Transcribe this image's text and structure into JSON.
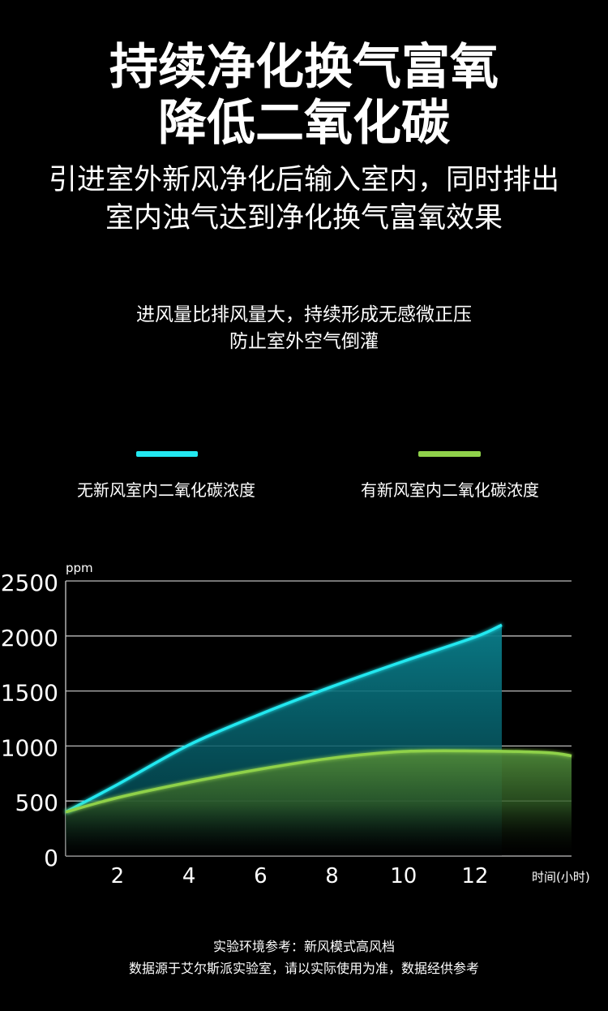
{
  "header": {
    "title_lines": [
      "持续净化换气富氧",
      "降低二氧化碳"
    ],
    "subtitle_lines": [
      "引进室外新风净化后输入室内，同时排出",
      "室内浊气达到净化换气富氧效果"
    ],
    "note_lines": [
      "进风量比排风量大，持续形成无感微正压",
      "防止室外空气倒灌"
    ]
  },
  "footer": {
    "lines": [
      "实验环境参考：新风模式高风档",
      "数据源于艾尔斯派实验室，请以实际使用为准，数据经供参考"
    ]
  },
  "chart_data": {
    "type": "area",
    "title": "",
    "xlabel": "时间(小时)",
    "ylabel": "ppm",
    "xlim": [
      0.55,
      14.7
    ],
    "ylim": [
      0,
      2500
    ],
    "xticks": [
      "2",
      "4",
      "6",
      "8",
      "10",
      "12"
    ],
    "yticks": [
      "0",
      "500",
      "1000",
      "1500",
      "2000",
      "2500"
    ],
    "grid": true,
    "legend_position": "top",
    "series": [
      {
        "name": "无新风室内二氧化碳浓度",
        "color": "#22e8f0",
        "x": [
          0.55,
          2,
          4,
          6,
          8,
          10,
          12,
          12.75
        ],
        "y": [
          400,
          650,
          1010,
          1290,
          1540,
          1770,
          1990,
          2100
        ]
      },
      {
        "name": "有新风室内二氧化碳浓度",
        "color": "#8fd14a",
        "x": [
          0.55,
          2,
          4,
          6,
          8,
          10,
          12,
          14,
          14.7
        ],
        "y": [
          400,
          530,
          670,
          790,
          890,
          950,
          955,
          940,
          910
        ]
      }
    ]
  }
}
